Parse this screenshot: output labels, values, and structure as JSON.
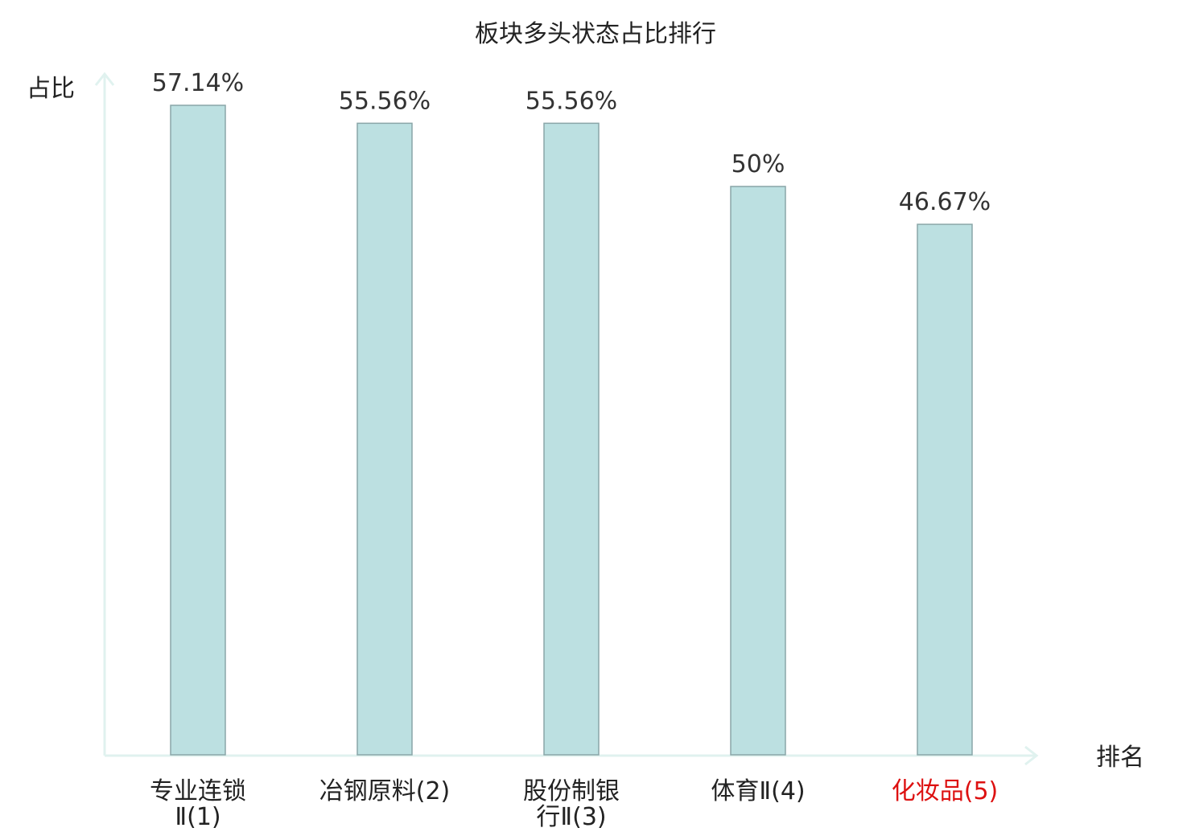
{
  "chart_data": {
    "type": "bar",
    "title": "板块多头状态占比排行",
    "ylabel": "占比",
    "xlabel": "排名",
    "categories": [
      {
        "lines": [
          "专业连锁",
          "Ⅱ(1)"
        ],
        "highlight": false
      },
      {
        "lines": [
          "冶钢原料(2)"
        ],
        "highlight": false
      },
      {
        "lines": [
          "股份制银",
          "行Ⅱ(3)"
        ],
        "highlight": false
      },
      {
        "lines": [
          "体育Ⅱ(4)"
        ],
        "highlight": false
      },
      {
        "lines": [
          "化妆品(5)"
        ],
        "highlight": true
      }
    ],
    "values": [
      57.14,
      55.56,
      55.56,
      50,
      46.67
    ],
    "value_labels": [
      "57.14%",
      "55.56%",
      "55.56%",
      "50%",
      "46.67%"
    ],
    "ylim": [
      0,
      57.14
    ],
    "grid": false,
    "colors": {
      "bar_fill": "#bce0e1",
      "bar_stroke": "#8aa6a8",
      "axis": "#e0f2ef",
      "label": "#222222",
      "highlight": "#dd1111"
    }
  }
}
